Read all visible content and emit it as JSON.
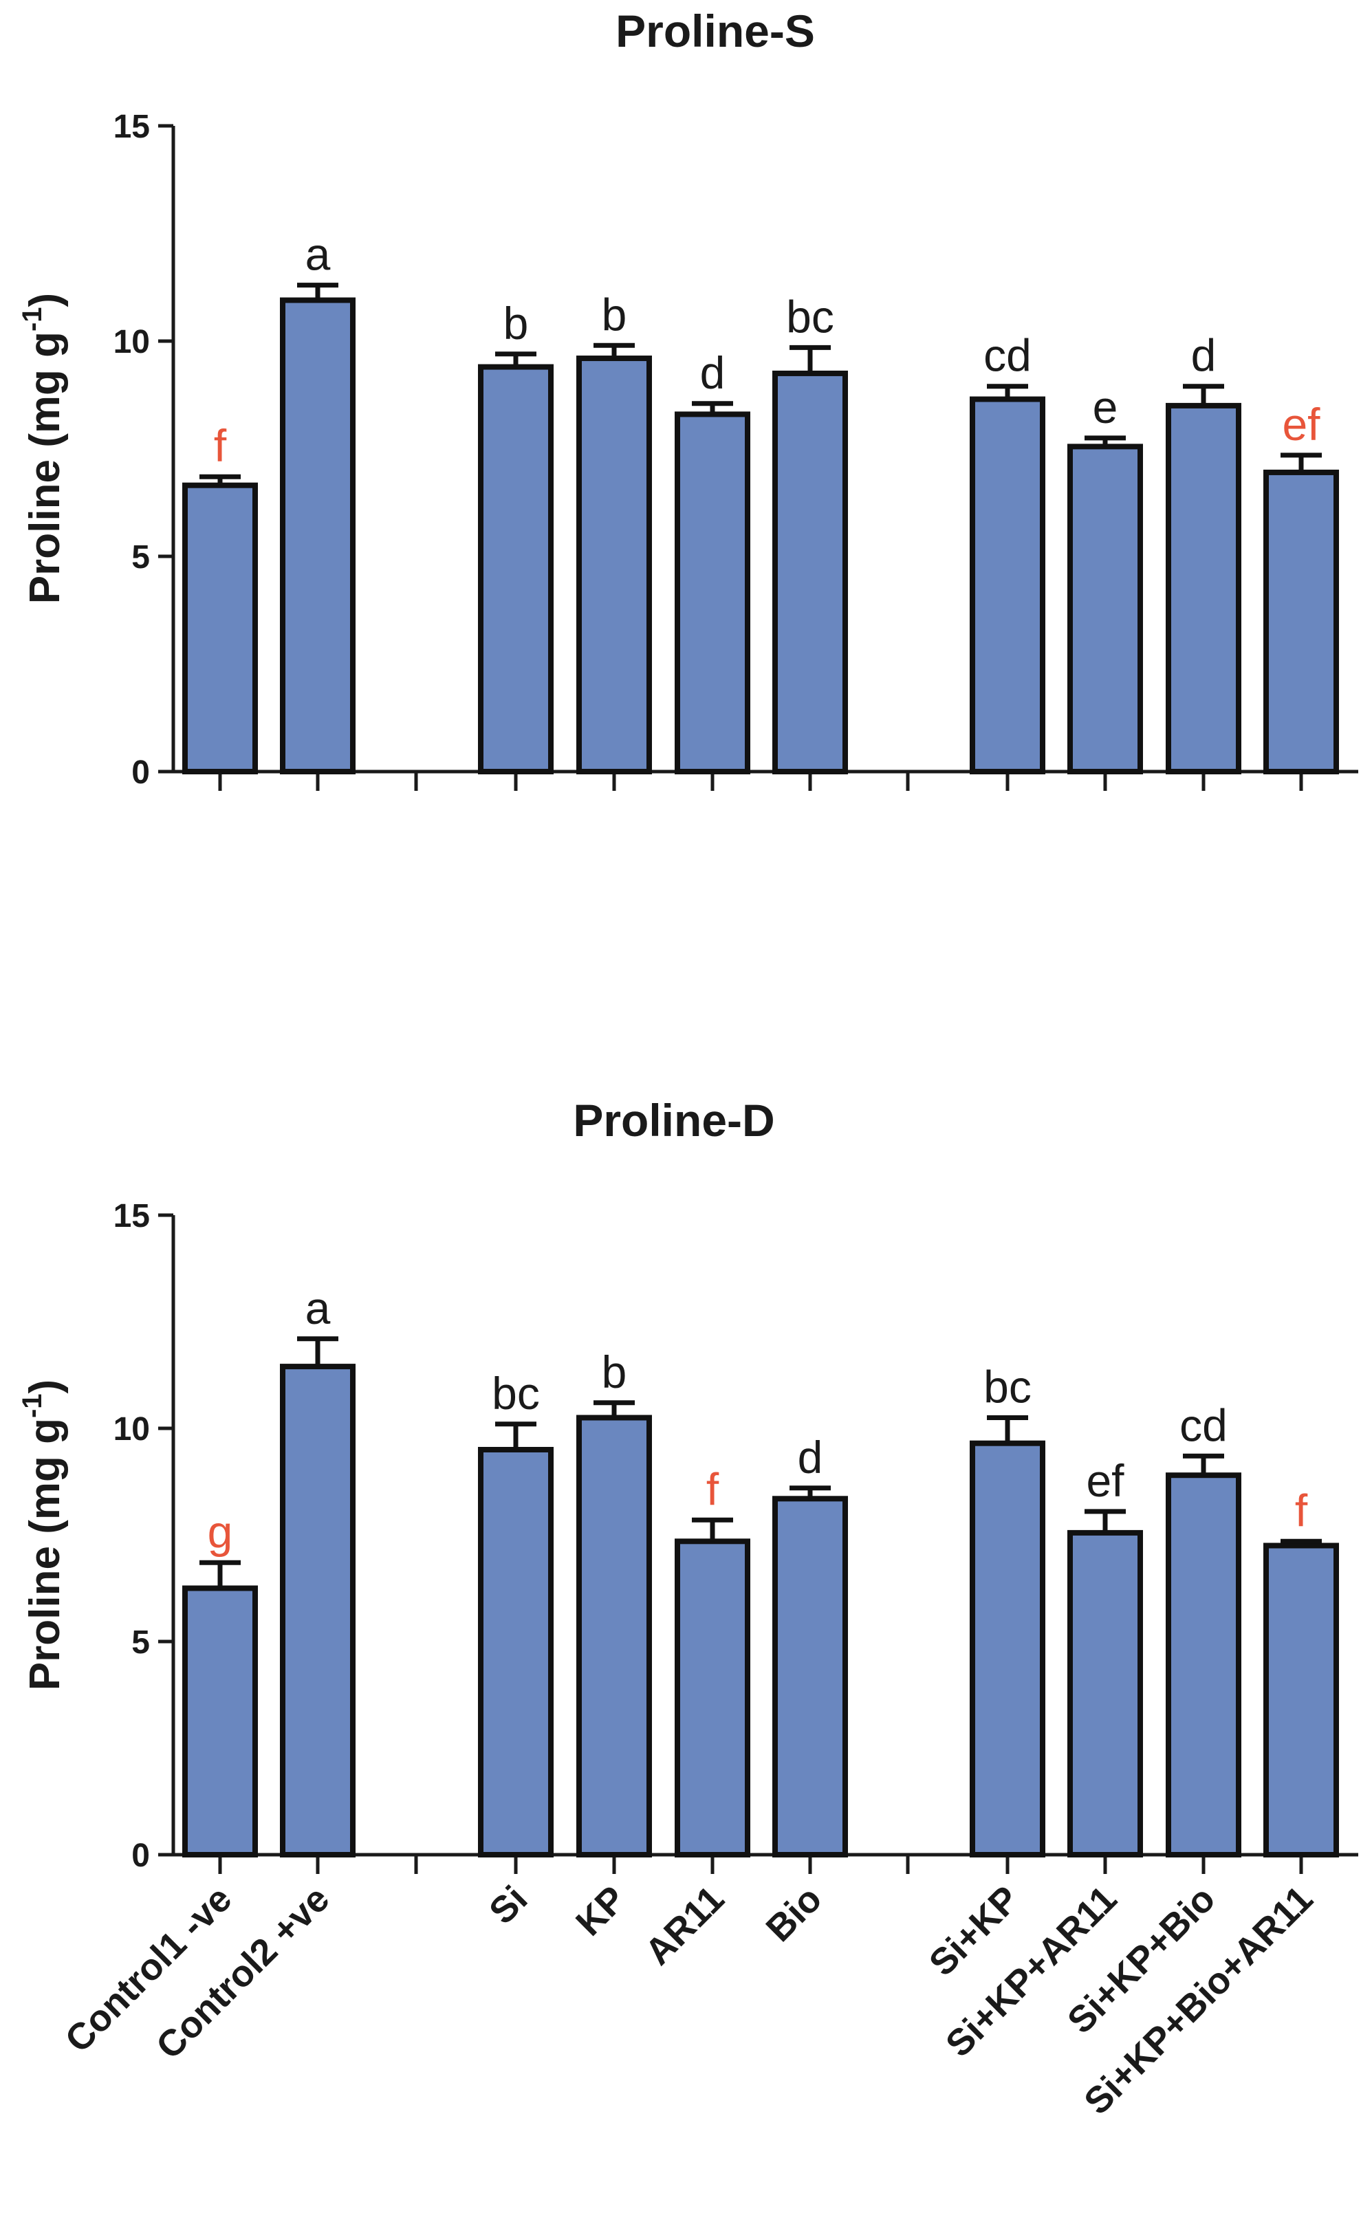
{
  "colors": {
    "bar_fill": "#6a87bf",
    "bar_stroke": "#111111",
    "letter_default": "#1a1a1a",
    "letter_highlight": "#e8553a"
  },
  "chart_data": [
    {
      "type": "bar",
      "title": "Proline-S",
      "ylabel": "Proline (mg g",
      "ylabel_superscript": "-1",
      "ylabel_close": ")",
      "ylim": [
        0,
        15
      ],
      "yticks": [
        0,
        5,
        10,
        15
      ],
      "categories": [
        "Control1 -ve",
        "Control2 +ve",
        "Si",
        "KP",
        "AR11",
        "Bio",
        "Si+KP",
        "Si+KP+AR11",
        "Si+KP+Bio",
        "Si+KP+Bio+AR11"
      ],
      "groups": [
        [
          0,
          1
        ],
        [
          2,
          3,
          4,
          5
        ],
        [
          6,
          7,
          8,
          9
        ]
      ],
      "values": [
        6.65,
        10.95,
        9.4,
        9.6,
        8.3,
        9.25,
        8.65,
        7.55,
        8.5,
        6.95
      ],
      "errors": [
        0.2,
        0.35,
        0.3,
        0.3,
        0.25,
        0.6,
        0.3,
        0.2,
        0.45,
        0.4
      ],
      "letters": [
        "f",
        "a",
        "b",
        "b",
        "d",
        "bc",
        "cd",
        "e",
        "d",
        "ef"
      ],
      "highlight": [
        true,
        false,
        false,
        false,
        false,
        false,
        false,
        false,
        false,
        true
      ],
      "show_xlabels": false
    },
    {
      "type": "bar",
      "title": "Proline-D",
      "ylabel": "Proline (mg g",
      "ylabel_superscript": "-1",
      "ylabel_close": ")",
      "ylim": [
        0,
        15
      ],
      "yticks": [
        0,
        5,
        10,
        15
      ],
      "categories": [
        "Control1 -ve",
        "Control2 +ve",
        "Si",
        "KP",
        "AR11",
        "Bio",
        "Si+KP",
        "Si+KP+AR11",
        "Si+KP+Bio",
        "Si+KP+Bio+AR11"
      ],
      "groups": [
        [
          0,
          1
        ],
        [
          2,
          3,
          4,
          5
        ],
        [
          6,
          7,
          8,
          9
        ]
      ],
      "values": [
        6.25,
        11.45,
        9.5,
        10.25,
        7.35,
        8.35,
        9.65,
        7.55,
        8.9,
        7.25
      ],
      "errors": [
        0.6,
        0.65,
        0.6,
        0.35,
        0.5,
        0.25,
        0.6,
        0.5,
        0.45,
        0.1
      ],
      "letters": [
        "g",
        "a",
        "bc",
        "b",
        "f",
        "d",
        "bc",
        "ef",
        "cd",
        "f"
      ],
      "highlight": [
        true,
        false,
        false,
        false,
        true,
        false,
        false,
        false,
        false,
        true
      ],
      "show_xlabels": true
    }
  ]
}
